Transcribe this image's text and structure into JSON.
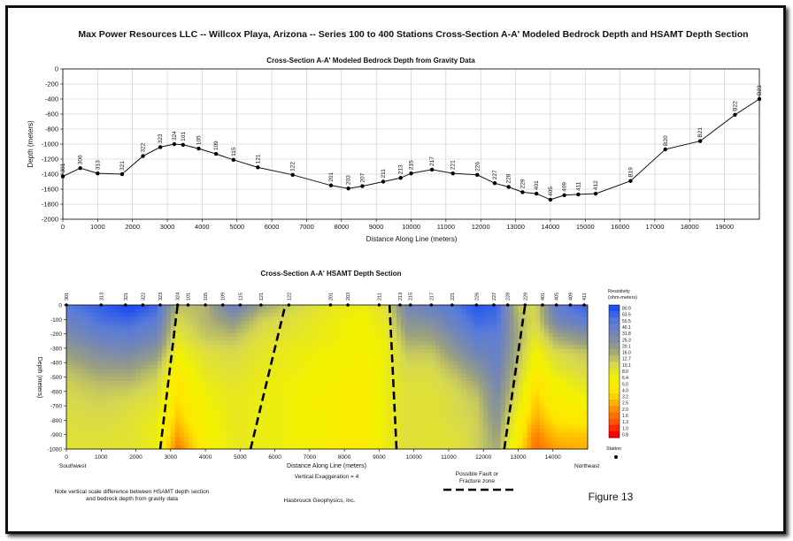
{
  "title": "Max Power Resources LLC -- Willcox Playa, Arizona -- Series 100 to 400 Stations Cross-Section A-A' Modeled Bedrock Depth and HSAMT Depth Section",
  "figure_label": "Figure 13",
  "footer": {
    "note_line1": "Note vertical scale difference between HSAMT depth section",
    "note_line2": "and bedrock depth from gravity data",
    "credit": "Hasbrouck Geophysics, Inc.",
    "fault_line1": "Possible Fault or",
    "fault_line2": "Fracture zone"
  },
  "chart_data": [
    {
      "type": "line",
      "title": "Cross-Section A-A' Modeled Bedrock Depth from Gravity Data",
      "xlabel": "Distance Along Line (meters)",
      "ylabel": "Depth (meters)",
      "xlim": [
        0,
        20000
      ],
      "ylim": [
        -2000,
        0
      ],
      "xticks": [
        0,
        1000,
        2000,
        3000,
        4000,
        5000,
        6000,
        7000,
        8000,
        9000,
        10000,
        11000,
        12000,
        13000,
        14000,
        15000,
        16000,
        17000,
        18000,
        19000
      ],
      "yticks": [
        0,
        -200,
        -400,
        -600,
        -800,
        -1000,
        -1200,
        -1400,
        -1600,
        -1800,
        -2000
      ],
      "grid": true,
      "series": [
        {
          "stations": [
            "301",
            "306",
            "313",
            "321",
            "322",
            "323",
            "324",
            "101",
            "105",
            "109",
            "115",
            "121",
            "122",
            "201",
            "203",
            "207",
            "211",
            "213",
            "215",
            "217",
            "221",
            "226",
            "227",
            "228",
            "229",
            "401",
            "405",
            "409",
            "411",
            "412",
            "B19",
            "B20",
            "B21",
            "B22",
            "B23"
          ],
          "x": [
            0,
            500,
            1000,
            1700,
            2300,
            2800,
            3200,
            3450,
            3900,
            4400,
            4900,
            5600,
            6600,
            7700,
            8200,
            8600,
            9200,
            9700,
            10000,
            10600,
            11200,
            11900,
            12400,
            12800,
            13200,
            13600,
            14000,
            14400,
            14800,
            15300,
            16300,
            17300,
            18300,
            19300,
            20000
          ],
          "y": [
            -1430,
            -1320,
            -1390,
            -1400,
            -1160,
            -1040,
            -1000,
            -1010,
            -1060,
            -1130,
            -1210,
            -1310,
            -1410,
            -1550,
            -1590,
            -1560,
            -1500,
            -1450,
            -1390,
            -1340,
            -1390,
            -1410,
            -1520,
            -1570,
            -1640,
            -1660,
            -1740,
            -1680,
            -1670,
            -1660,
            -1490,
            -1070,
            -960,
            -610,
            -400
          ]
        }
      ]
    },
    {
      "type": "heatmap",
      "title": "Cross-Section A-A' HSAMT Depth Section",
      "xlabel": "Distance Along Line (meters)",
      "ylabel": "Depth (meters)",
      "subtitle": "Vertical Exaggeration = 4",
      "xlim": [
        0,
        15000
      ],
      "ylim": [
        -1000,
        0
      ],
      "xticks": [
        0,
        1000,
        2000,
        3000,
        4000,
        5000,
        6000,
        7000,
        8000,
        9000,
        10000,
        11000,
        12000,
        13000,
        14000
      ],
      "yticks": [
        0,
        -100,
        -200,
        -300,
        -400,
        -500,
        -600,
        -700,
        -800,
        -900,
        -1000
      ],
      "x_left_label": "Southwest",
      "x_right_label": "Northeast",
      "stations": [
        "301",
        "313",
        "321",
        "322",
        "323",
        "324",
        "101",
        "105",
        "109",
        "115",
        "121",
        "122",
        "201",
        "203",
        "211",
        "213",
        "215",
        "217",
        "221",
        "226",
        "227",
        "228",
        "229",
        "401",
        "405",
        "409",
        "411"
      ],
      "station_x": [
        0,
        1000,
        1700,
        2200,
        2700,
        3200,
        3500,
        4000,
        4500,
        5000,
        5600,
        6400,
        7600,
        8100,
        9000,
        9600,
        9900,
        10500,
        11100,
        11800,
        12300,
        12700,
        13200,
        13700,
        14100,
        14500,
        14900
      ],
      "fault_zones": [
        [
          2700,
          -1000,
          3200,
          0
        ],
        [
          5300,
          -1000,
          6300,
          0
        ],
        [
          9300,
          0,
          9500,
          -1000
        ],
        [
          12600,
          -1000,
          13200,
          0
        ]
      ],
      "resistivity_samples_x": [
        0,
        1000,
        1800,
        2600,
        3200,
        4000,
        4800,
        5600,
        6500,
        7500,
        8500,
        9200,
        9800,
        10500,
        11200,
        11800,
        12400,
        13000,
        13500,
        14100,
        14900
      ],
      "resistivity_samples": [
        [
          50,
          68,
          95,
          62,
          13,
          14,
          40,
          17,
          11,
          8,
          7,
          9,
          32,
          40,
          52,
          75,
          64,
          12,
          10,
          45,
          65
        ],
        [
          35,
          55,
          60,
          45,
          10,
          14,
          20,
          11,
          9,
          7,
          6,
          8,
          22,
          25,
          40,
          60,
          55,
          14,
          10,
          30,
          45
        ],
        [
          25,
          38,
          42,
          32,
          8,
          12,
          13,
          9,
          8,
          7,
          6,
          7,
          16,
          17,
          28,
          45,
          45,
          15,
          8,
          16,
          22
        ],
        [
          18,
          25,
          28,
          20,
          6.4,
          9,
          10,
          8,
          7,
          6.4,
          5,
          6.8,
          12,
          12,
          20,
          32,
          40,
          14,
          6,
          10,
          12
        ],
        [
          13,
          18,
          18,
          13,
          5,
          8,
          9,
          7.5,
          7,
          6,
          5,
          7,
          10,
          10,
          14,
          22,
          35,
          12,
          5,
          8,
          10
        ],
        [
          11,
          13,
          13,
          10,
          4,
          7,
          8,
          7,
          6.5,
          5.5,
          4.5,
          7,
          9,
          9,
          11,
          15,
          30,
          10,
          3.5,
          6,
          8
        ],
        [
          10,
          11,
          10,
          8.5,
          3.5,
          6.4,
          7.5,
          7,
          6.5,
          5,
          4.5,
          7,
          9,
          8.5,
          10,
          12,
          25,
          8,
          3,
          5,
          6
        ],
        [
          9.5,
          10,
          9,
          7.5,
          3,
          6,
          7.5,
          7,
          6.5,
          5,
          4.5,
          7,
          9,
          8.5,
          10,
          11,
          22,
          6,
          2.5,
          4,
          4.5
        ],
        [
          9,
          9,
          8.5,
          7,
          2.3,
          5.5,
          7.5,
          7,
          6.5,
          5,
          4.5,
          7,
          9,
          8.5,
          9,
          11,
          18,
          5,
          1.8,
          3,
          3
        ],
        [
          8.5,
          8.5,
          8.5,
          7,
          1.6,
          5,
          7.5,
          7,
          6.5,
          5,
          4.5,
          7,
          9,
          8.5,
          9,
          11,
          16,
          4,
          1.5,
          2.2,
          2.5
        ]
      ],
      "colorbar": {
        "title_line1": "Resistivity",
        "title_line2": "(ohm-meters)",
        "ticks": [
          "80.0",
          "63.5",
          "50.5",
          "40.1",
          "31.8",
          "25.3",
          "20.1",
          "16.0",
          "12.7",
          "10.1",
          "8.0",
          "6.4",
          "5.0",
          "4.0",
          "3.2",
          "2.5",
          "2.0",
          "1.6",
          "1.3",
          "1.0",
          "0.8"
        ],
        "colors_low_to_high": [
          "#ff0000",
          "#ff5a00",
          "#ffa000",
          "#ffe600",
          "#f2f200",
          "#d6d850",
          "#9aa080",
          "#7888b0",
          "#5a7cd8",
          "#1e50f0"
        ]
      },
      "legend_station_label": "Station"
    }
  ]
}
